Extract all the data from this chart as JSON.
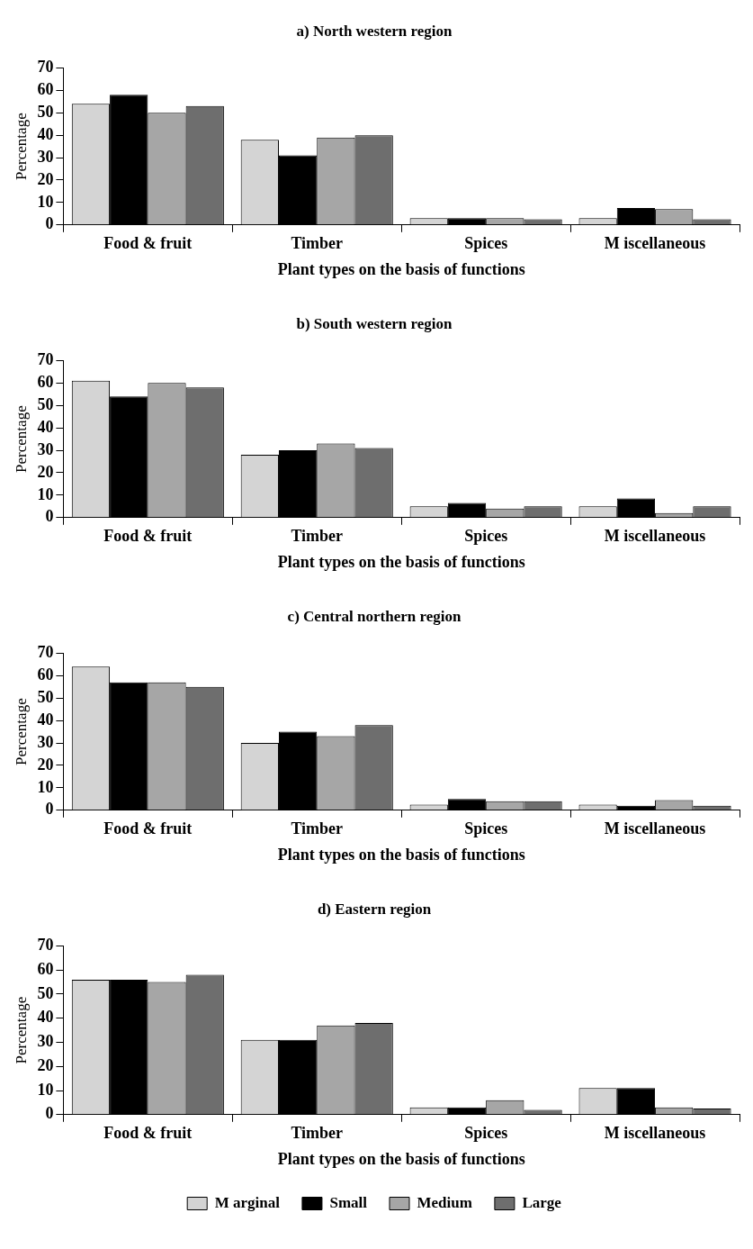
{
  "chart_data": [
    {
      "type": "bar",
      "title": "a) North western region",
      "xlabel": "Plant types on the basis of functions",
      "ylabel": "Percentage",
      "categories": [
        "Food & fruit",
        "Timber",
        "Spices",
        "M iscellaneous"
      ],
      "series": [
        {
          "color": "#d4d4d4",
          "values": [
            54,
            38,
            3,
            3
          ]
        },
        {
          "color": "#000000",
          "values": [
            58,
            31,
            3,
            7.5
          ]
        },
        {
          "color": "#a6a6a6",
          "values": [
            50,
            39,
            3,
            7
          ]
        },
        {
          "color": "#6e6e6e",
          "values": [
            53,
            40,
            2.5,
            2.5
          ]
        }
      ],
      "ylim": [
        0,
        70
      ],
      "yticks": [
        0,
        10,
        20,
        30,
        40,
        50,
        60,
        70
      ],
      "grid": false,
      "legend": false
    },
    {
      "type": "bar",
      "title": "b) South western region",
      "xlabel": "Plant types on the basis of functions",
      "ylabel": "Percentage",
      "categories": [
        "Food & fruit",
        "Timber",
        "Spices",
        "M iscellaneous"
      ],
      "series": [
        {
          "color": "#d4d4d4",
          "values": [
            61,
            28,
            5,
            5
          ]
        },
        {
          "color": "#000000",
          "values": [
            54,
            30,
            6.5,
            8.5
          ]
        },
        {
          "color": "#a6a6a6",
          "values": [
            60,
            33,
            4,
            2
          ]
        },
        {
          "color": "#6e6e6e",
          "values": [
            58,
            31,
            5,
            5
          ]
        }
      ],
      "ylim": [
        0,
        70
      ],
      "yticks": [
        0,
        10,
        20,
        30,
        40,
        50,
        60,
        70
      ],
      "grid": false,
      "legend": false
    },
    {
      "type": "bar",
      "title": "c) Central northern region",
      "xlabel": "Plant types on the basis of functions",
      "ylabel": "Percentage",
      "categories": [
        "Food & fruit",
        "Timber",
        "Spices",
        "M iscellaneous"
      ],
      "series": [
        {
          "color": "#d4d4d4",
          "values": [
            64,
            30,
            2.5,
            2.5
          ]
        },
        {
          "color": "#000000",
          "values": [
            57,
            35,
            5,
            2
          ]
        },
        {
          "color": "#a6a6a6",
          "values": [
            57,
            33,
            4,
            4.5
          ]
        },
        {
          "color": "#6e6e6e",
          "values": [
            55,
            38,
            4,
            2
          ]
        }
      ],
      "ylim": [
        0,
        70
      ],
      "yticks": [
        0,
        10,
        20,
        30,
        40,
        50,
        60,
        70
      ],
      "grid": false,
      "legend": false
    },
    {
      "type": "bar",
      "title": "d) Eastern region",
      "xlabel": "Plant types on the basis of functions",
      "ylabel": "Percentage",
      "categories": [
        "Food & fruit",
        "Timber",
        "Spices",
        "M iscellaneous"
      ],
      "series": [
        {
          "name": "M arginal",
          "color": "#d4d4d4",
          "values": [
            56,
            31,
            3,
            11
          ]
        },
        {
          "name": "Small",
          "color": "#000000",
          "values": [
            56,
            31,
            3,
            11
          ]
        },
        {
          "name": "Medium",
          "color": "#a6a6a6",
          "values": [
            55,
            37,
            6,
            3
          ]
        },
        {
          "name": "Large",
          "color": "#6e6e6e",
          "values": [
            58,
            38,
            2,
            2.5
          ]
        }
      ],
      "ylim": [
        0,
        70
      ],
      "yticks": [
        0,
        10,
        20,
        30,
        40,
        50,
        60,
        70
      ],
      "grid": false,
      "legend": "bottom"
    }
  ]
}
